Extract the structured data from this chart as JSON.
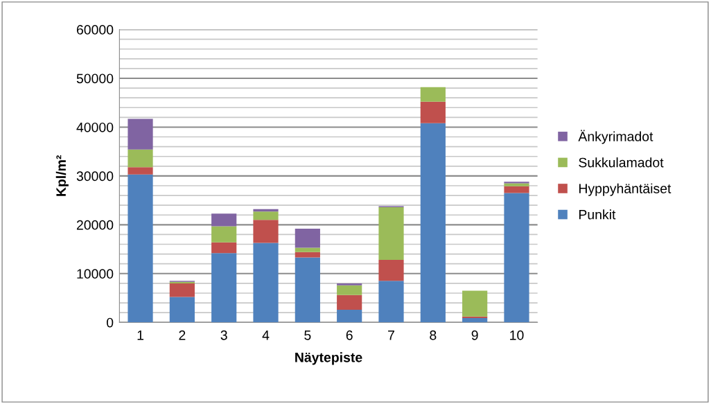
{
  "chart_data": {
    "type": "bar",
    "stacked": true,
    "xlabel": "Näytepiste",
    "ylabel": "Kpl/m²",
    "categories": [
      "1",
      "2",
      "3",
      "4",
      "5",
      "6",
      "7",
      "8",
      "9",
      "10"
    ],
    "series": [
      {
        "name": "Punkit",
        "color": "#4f81bd",
        "values": [
          30300,
          5200,
          14200,
          16300,
          13300,
          2600,
          8500,
          40800,
          900,
          26500
        ]
      },
      {
        "name": "Hyppyhäntäiset",
        "color": "#c0504d",
        "values": [
          1500,
          2800,
          2200,
          4700,
          1100,
          3000,
          4300,
          4400,
          300,
          1400
        ]
      },
      {
        "name": "Sukkulamadot",
        "color": "#9bbb59",
        "values": [
          3600,
          300,
          3300,
          1700,
          900,
          2000,
          10800,
          3000,
          5300,
          600
        ]
      },
      {
        "name": "Änkyrimadot",
        "color": "#8064a2",
        "values": [
          6300,
          200,
          2600,
          500,
          3900,
          400,
          200,
          null,
          null,
          300
        ]
      }
    ],
    "ylim": [
      0,
      60000
    ],
    "yticks": [
      0,
      {
        "value": 2000,
        "label": null
      },
      {
        "value": 4000,
        "label": null
      },
      {
        "value": 6000,
        "label": null
      },
      {
        "value": 8000,
        "label": null
      },
      10000,
      {
        "value": 12000,
        "label": null
      },
      {
        "value": 14000,
        "label": null
      },
      {
        "value": 16000,
        "label": null
      },
      {
        "value": 18000,
        "label": null
      },
      20000,
      {
        "value": 22000,
        "label": null
      },
      {
        "value": 24000,
        "label": null
      },
      {
        "value": 26000,
        "label": null
      },
      {
        "value": 28000,
        "label": null
      },
      30000,
      {
        "value": 32000,
        "label": null
      },
      {
        "value": 34000,
        "label": null
      },
      {
        "value": 36000,
        "label": null
      },
      {
        "value": 38000,
        "label": null
      },
      40000,
      {
        "value": 42000,
        "label": null
      },
      {
        "value": 44000,
        "label": null
      },
      {
        "value": 46000,
        "label": null
      },
      {
        "value": 48000,
        "label": null
      },
      50000,
      {
        "value": 52000,
        "label": null
      },
      {
        "value": 54000,
        "label": null
      },
      {
        "value": 56000,
        "label": null
      },
      {
        "value": 58000,
        "label": null
      },
      60000
    ],
    "grid": "y",
    "legend": "right"
  }
}
